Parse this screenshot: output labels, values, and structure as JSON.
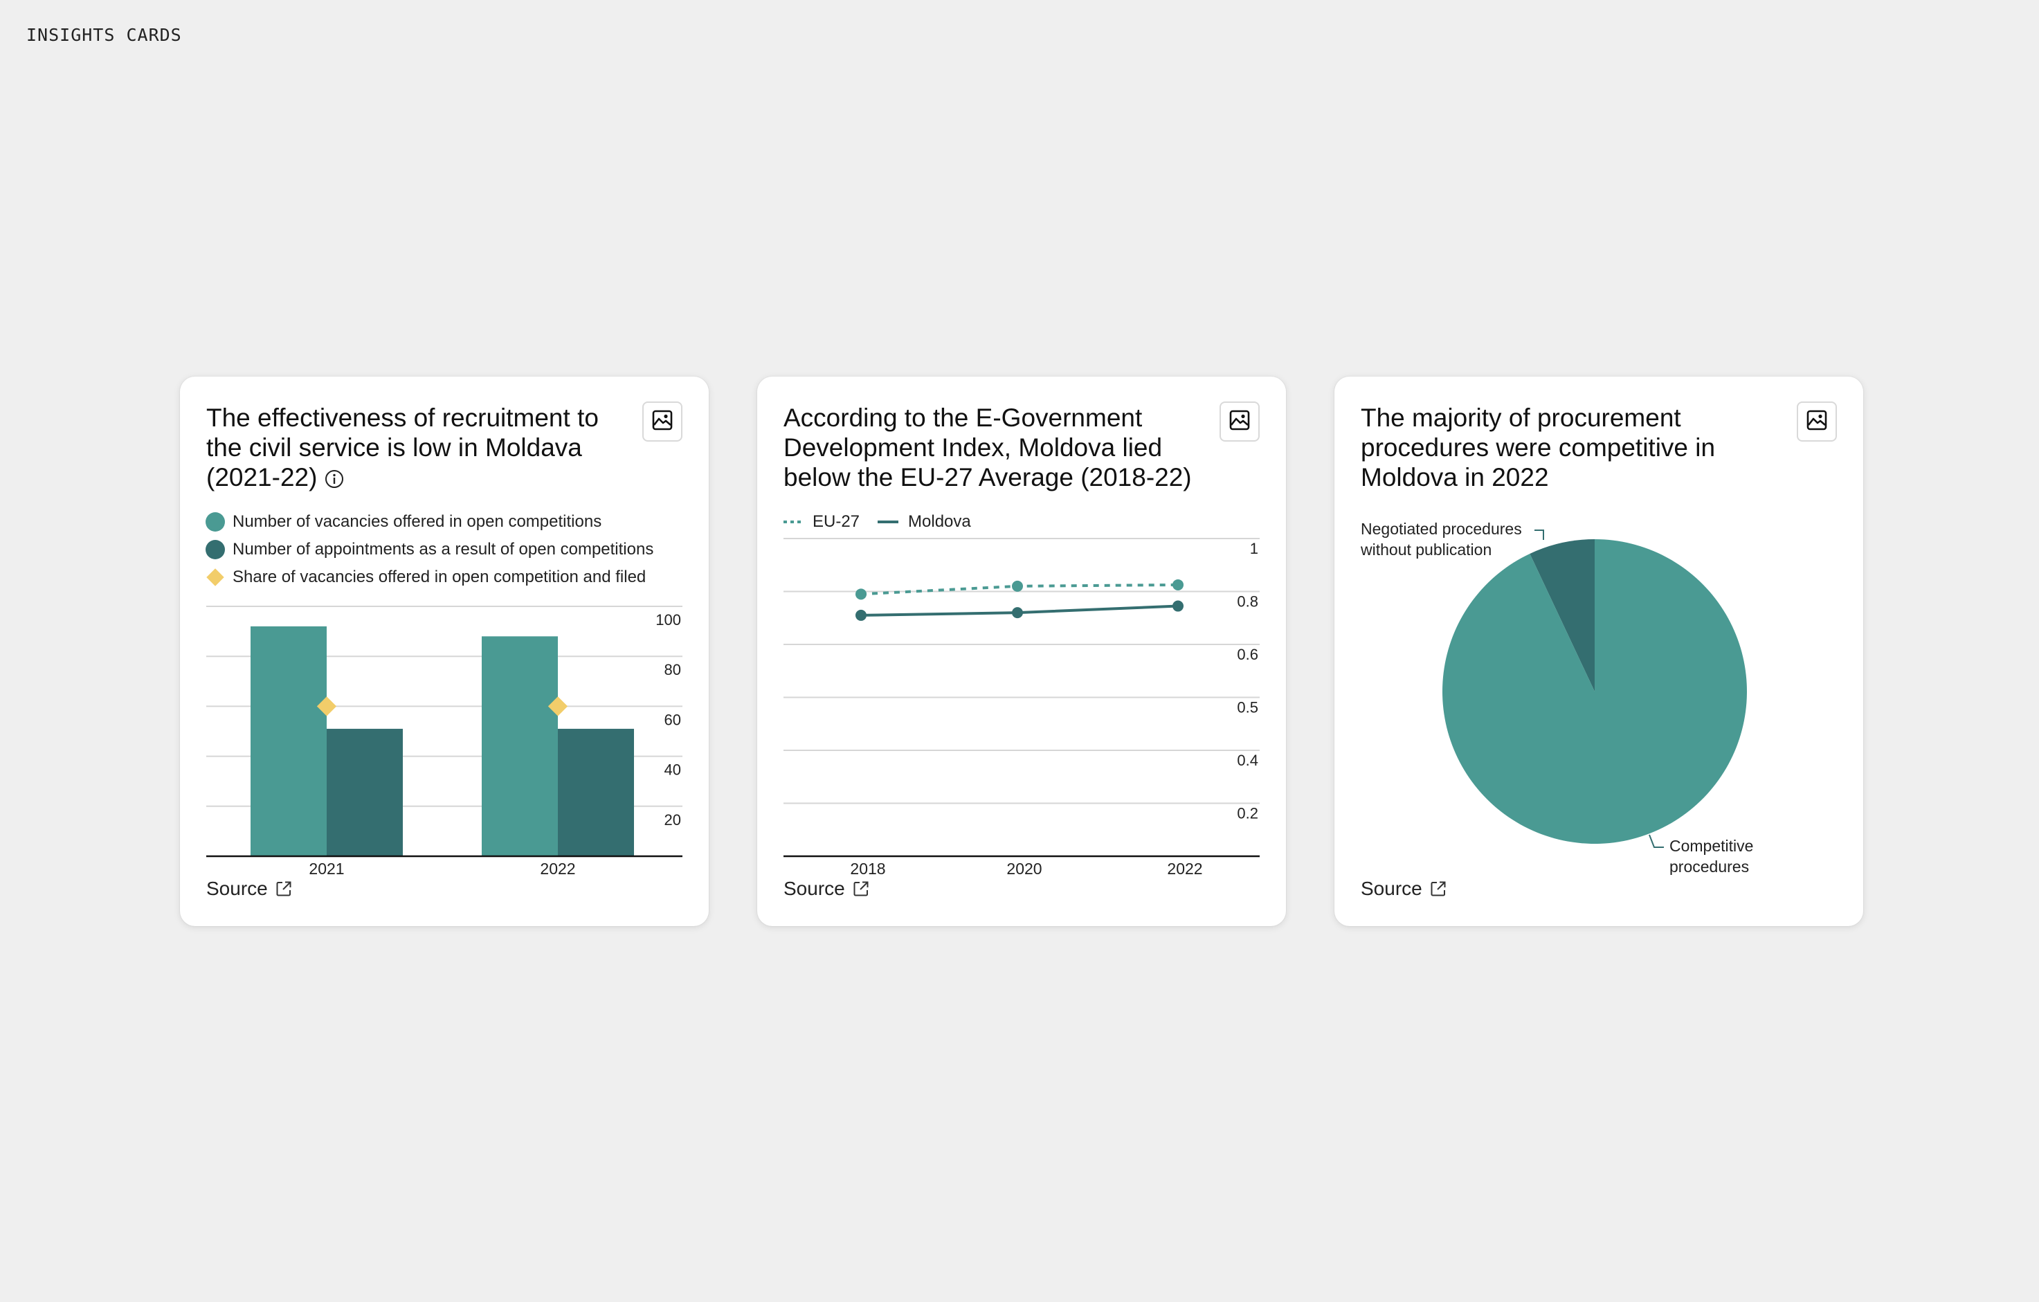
{
  "page_label": "INSIGHTS CARDS",
  "colors": {
    "teal": "#4a9a93",
    "dark_teal": "#346e70",
    "yellow": "#f2cd6a",
    "grid": "#d6d6d6",
    "axis": "#111111"
  },
  "cards": [
    {
      "title": "The effectiveness of recruitment to the civil service is low in Moldava (2021-22)",
      "source_label": "Source",
      "icons": [
        "info-icon",
        "image-icon",
        "external-link-icon"
      ]
    },
    {
      "title": "According to the E-Government Development Index, Moldova lied below the EU-27 Average (2018-22)",
      "source_label": "Source",
      "icons": [
        "image-icon",
        "external-link-icon"
      ]
    },
    {
      "title": "The majority of procurement procedures were competitive in Moldova in 2022",
      "source_label": "Source",
      "icons": [
        "image-icon",
        "external-link-icon"
      ]
    }
  ],
  "chart_data": [
    {
      "type": "bar",
      "categories": [
        "2021",
        "2022"
      ],
      "series": [
        {
          "name": "Number of vacancies offered in open competitions",
          "kind": "bar",
          "color": "#4a9a93",
          "values": [
            92,
            88
          ]
        },
        {
          "name": "Number of appointments as a result of open competitions",
          "kind": "bar",
          "color": "#346e70",
          "values": [
            51,
            51
          ]
        },
        {
          "name": "Share of vacancies offered in open competition and filed",
          "kind": "marker",
          "color": "#f2cd6a",
          "values": [
            60,
            60
          ]
        }
      ],
      "y_ticks": [
        "100",
        "80",
        "60",
        "40",
        "20"
      ],
      "ylim": [
        0,
        100
      ],
      "grid": true,
      "y_axis_side": "right",
      "legend": "top"
    },
    {
      "type": "line",
      "x": [
        "2018",
        "2020",
        "2022"
      ],
      "series": [
        {
          "name": "EU-27",
          "style": "dashed",
          "color": "#4a9a93",
          "values": [
            0.79,
            0.82,
            0.825
          ]
        },
        {
          "name": "Moldova",
          "style": "solid",
          "color": "#346e70",
          "values": [
            0.71,
            0.72,
            0.745
          ]
        }
      ],
      "y_ticks": [
        "1",
        "0.8",
        "0.6",
        "0.5",
        "0.4",
        "0.2"
      ],
      "grid": true,
      "y_axis_side": "right",
      "legend": "top"
    },
    {
      "type": "pie",
      "slices": [
        {
          "label": "Negotiated procedures without publication",
          "value": 7,
          "color": "#346e70"
        },
        {
          "label": "Competitive procedures",
          "value": 93,
          "color": "#4a9a93"
        }
      ],
      "start": "12 o'clock, counter-clockwise",
      "legend": "callout labels"
    }
  ]
}
